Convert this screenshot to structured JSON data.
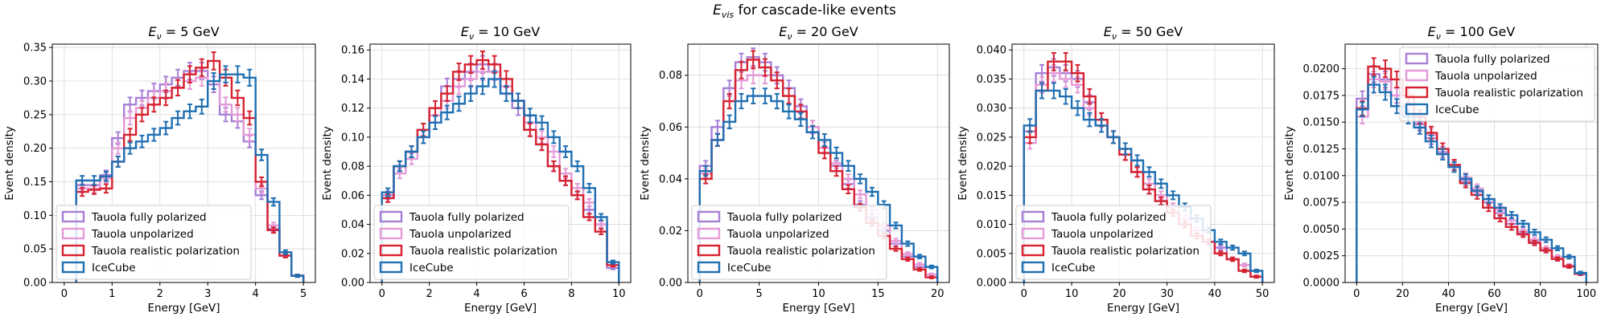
{
  "figure": {
    "suptitle_sym": "E",
    "suptitle_sub": "vis",
    "suptitle_rest": " for cascade-like events"
  },
  "colors": {
    "polarized": "#a87fd6",
    "unpolarized": "#e49ad6",
    "realistic": "#d62230",
    "icecube": "#1f6fb2",
    "grid": "#d8d8d8"
  },
  "legend": [
    "Tauola fully polarized",
    "Tauola unpolarized",
    "Tauola realistic polarization",
    "IceCube"
  ],
  "chart_data": [
    {
      "type": "step",
      "title_energy": "5",
      "title_sym": "E",
      "title_sub": "ν",
      "title_eq": " = ",
      "title_unit": " GeV",
      "xlabel": "Energy [GeV]",
      "ylabel": "Event density",
      "xlim": [
        -0.25,
        5.25
      ],
      "ylim": [
        0,
        0.355
      ],
      "xticks": [
        "0",
        "1",
        "2",
        "3",
        "4",
        "5"
      ],
      "xtick_values": [
        0,
        1,
        2,
        3,
        4,
        5
      ],
      "yticks": [
        "0.00",
        "0.05",
        "0.10",
        "0.15",
        "0.20",
        "0.25",
        "0.30",
        "0.35"
      ],
      "ytick_values": [
        0,
        0.05,
        0.1,
        0.15,
        0.2,
        0.25,
        0.3,
        0.35
      ],
      "legend_position": "lower-left",
      "bin_edges": [
        0.25,
        0.5,
        0.75,
        1.0,
        1.25,
        1.5,
        1.75,
        2.0,
        2.25,
        2.5,
        2.75,
        3.0,
        3.25,
        3.5,
        3.75,
        4.0,
        4.25,
        4.5,
        4.75,
        5.0
      ],
      "series": [
        {
          "name": "Tauola fully polarized",
          "values": [
            0.145,
            0.145,
            0.16,
            0.215,
            0.265,
            0.275,
            0.285,
            0.295,
            0.305,
            0.315,
            0.315,
            0.295,
            0.25,
            0.24,
            0.21,
            0.13,
            0.08,
            0.04,
            0.01
          ]
        },
        {
          "name": "Tauola unpolarized",
          "values": [
            0.14,
            0.14,
            0.155,
            0.2,
            0.245,
            0.26,
            0.275,
            0.285,
            0.29,
            0.3,
            0.305,
            0.3,
            0.265,
            0.25,
            0.22,
            0.14,
            0.085,
            0.04,
            0.01
          ]
        },
        {
          "name": "Tauola realistic polarization",
          "values": [
            0.135,
            0.138,
            0.14,
            0.18,
            0.22,
            0.25,
            0.265,
            0.275,
            0.29,
            0.31,
            0.32,
            0.33,
            0.305,
            0.275,
            0.245,
            0.15,
            0.078,
            0.04,
            0.01
          ]
        },
        {
          "name": "IceCube",
          "values": [
            0.152,
            0.152,
            0.158,
            0.18,
            0.2,
            0.21,
            0.22,
            0.23,
            0.245,
            0.255,
            0.262,
            0.3,
            0.31,
            0.31,
            0.305,
            0.19,
            0.12,
            0.045,
            0.01
          ]
        }
      ]
    },
    {
      "type": "step",
      "title_energy": "10",
      "title_sym": "E",
      "title_sub": "ν",
      "title_eq": " = ",
      "title_unit": " GeV",
      "xlabel": "Energy [GeV]",
      "ylabel": "Event density",
      "xlim": [
        -0.5,
        10.5
      ],
      "ylim": [
        0,
        0.164
      ],
      "xticks": [
        "0",
        "2",
        "4",
        "6",
        "8",
        "10"
      ],
      "xtick_values": [
        0,
        2,
        4,
        6,
        8,
        10
      ],
      "yticks": [
        "0.00",
        "0.02",
        "0.04",
        "0.06",
        "0.08",
        "0.10",
        "0.12",
        "0.14",
        "0.16"
      ],
      "ytick_values": [
        0,
        0.02,
        0.04,
        0.06,
        0.08,
        0.1,
        0.12,
        0.14,
        0.16
      ],
      "legend_position": "lower-left",
      "bin_edges": [
        0,
        0.5,
        1,
        1.5,
        2,
        2.5,
        3,
        3.5,
        4,
        4.5,
        5,
        5.5,
        6,
        6.5,
        7,
        7.5,
        8,
        8.5,
        9,
        9.5,
        10
      ],
      "series": [
        {
          "name": "Tauola fully polarized",
          "values": [
            0.06,
            0.08,
            0.09,
            0.105,
            0.12,
            0.135,
            0.14,
            0.145,
            0.15,
            0.145,
            0.13,
            0.12,
            0.105,
            0.095,
            0.08,
            0.07,
            0.06,
            0.05,
            0.04,
            0.01
          ]
        },
        {
          "name": "Tauola unpolarized",
          "values": [
            0.058,
            0.075,
            0.085,
            0.1,
            0.115,
            0.125,
            0.135,
            0.14,
            0.145,
            0.145,
            0.135,
            0.125,
            0.11,
            0.1,
            0.09,
            0.075,
            0.065,
            0.055,
            0.04,
            0.012
          ]
        },
        {
          "name": "Tauola realistic polarization",
          "values": [
            0.058,
            0.08,
            0.09,
            0.105,
            0.12,
            0.13,
            0.145,
            0.15,
            0.153,
            0.15,
            0.14,
            0.125,
            0.105,
            0.095,
            0.08,
            0.07,
            0.06,
            0.045,
            0.035,
            0.012
          ]
        },
        {
          "name": "IceCube",
          "values": [
            0.062,
            0.08,
            0.09,
            0.1,
            0.11,
            0.117,
            0.123,
            0.13,
            0.135,
            0.14,
            0.13,
            0.125,
            0.115,
            0.11,
            0.1,
            0.09,
            0.08,
            0.065,
            0.045,
            0.014
          ]
        }
      ]
    },
    {
      "type": "step",
      "title_energy": "20",
      "title_sym": "E",
      "title_sub": "ν",
      "title_eq": " = ",
      "title_unit": " GeV",
      "xlabel": "Energy [GeV]",
      "ylabel": "Event density",
      "xlim": [
        -1,
        21
      ],
      "ylim": [
        0,
        0.092
      ],
      "xticks": [
        "0",
        "5",
        "10",
        "15",
        "20"
      ],
      "xtick_values": [
        0,
        5,
        10,
        15,
        20
      ],
      "yticks": [
        "0.00",
        "0.02",
        "0.04",
        "0.06",
        "0.08"
      ],
      "ytick_values": [
        0,
        0.02,
        0.04,
        0.06,
        0.08
      ],
      "legend_position": "lower-left",
      "bin_edges": [
        0,
        1,
        2,
        3,
        4,
        5,
        6,
        7,
        8,
        9,
        10,
        11,
        12,
        13,
        14,
        15,
        16,
        17,
        18,
        19,
        20
      ],
      "series": [
        {
          "name": "Tauola fully polarized",
          "values": [
            0.045,
            0.06,
            0.075,
            0.085,
            0.087,
            0.085,
            0.08,
            0.075,
            0.068,
            0.06,
            0.052,
            0.045,
            0.038,
            0.03,
            0.025,
            0.02,
            0.015,
            0.01,
            0.006,
            0.003
          ]
        },
        {
          "name": "Tauola unpolarized",
          "values": [
            0.042,
            0.055,
            0.07,
            0.078,
            0.08,
            0.08,
            0.078,
            0.072,
            0.066,
            0.06,
            0.052,
            0.046,
            0.04,
            0.034,
            0.028,
            0.022,
            0.016,
            0.011,
            0.007,
            0.003
          ]
        },
        {
          "name": "Tauola realistic polarization",
          "values": [
            0.04,
            0.055,
            0.07,
            0.082,
            0.086,
            0.083,
            0.078,
            0.072,
            0.066,
            0.058,
            0.05,
            0.043,
            0.036,
            0.029,
            0.023,
            0.018,
            0.013,
            0.009,
            0.005,
            0.002
          ]
        },
        {
          "name": "IceCube",
          "values": [
            0.043,
            0.055,
            0.062,
            0.07,
            0.072,
            0.072,
            0.07,
            0.066,
            0.063,
            0.058,
            0.055,
            0.05,
            0.045,
            0.04,
            0.035,
            0.03,
            0.022,
            0.015,
            0.01,
            0.006
          ]
        }
      ]
    },
    {
      "type": "step",
      "title_energy": "50",
      "title_sym": "E",
      "title_sub": "ν",
      "title_eq": " = ",
      "title_unit": " GeV",
      "xlabel": "Energy [GeV]",
      "ylabel": "Event density",
      "xlim": [
        -2.5,
        52.5
      ],
      "ylim": [
        0,
        0.041
      ],
      "xticks": [
        "0",
        "10",
        "20",
        "30",
        "40",
        "50"
      ],
      "xtick_values": [
        0,
        10,
        20,
        30,
        40,
        50
      ],
      "yticks": [
        "0.000",
        "0.005",
        "0.010",
        "0.015",
        "0.020",
        "0.025",
        "0.030",
        "0.035",
        "0.040"
      ],
      "ytick_values": [
        0,
        0.005,
        0.01,
        0.015,
        0.02,
        0.025,
        0.03,
        0.035,
        0.04
      ],
      "legend_position": "lower-left",
      "bin_edges": [
        0,
        2.5,
        5,
        7.5,
        10,
        12.5,
        15,
        17.5,
        20,
        22.5,
        25,
        27.5,
        30,
        32.5,
        35,
        37.5,
        40,
        42.5,
        45,
        47.5,
        50
      ],
      "series": [
        {
          "name": "Tauola fully polarized",
          "values": [
            0.026,
            0.036,
            0.037,
            0.036,
            0.035,
            0.031,
            0.028,
            0.025,
            0.022,
            0.019,
            0.016,
            0.014,
            0.012,
            0.01,
            0.009,
            0.007,
            0.006,
            0.004,
            0.003,
            0.001
          ]
        },
        {
          "name": "Tauola unpolarized",
          "values": [
            0.024,
            0.034,
            0.036,
            0.035,
            0.034,
            0.03,
            0.027,
            0.025,
            0.022,
            0.019,
            0.017,
            0.015,
            0.013,
            0.011,
            0.009,
            0.007,
            0.005,
            0.004,
            0.003,
            0.001
          ]
        },
        {
          "name": "Tauola realistic polarization",
          "values": [
            0.025,
            0.033,
            0.038,
            0.038,
            0.036,
            0.032,
            0.028,
            0.025,
            0.022,
            0.019,
            0.016,
            0.014,
            0.012,
            0.01,
            0.008,
            0.007,
            0.005,
            0.004,
            0.002,
            0.001
          ]
        },
        {
          "name": "IceCube",
          "values": [
            0.027,
            0.033,
            0.033,
            0.032,
            0.03,
            0.028,
            0.027,
            0.025,
            0.023,
            0.021,
            0.019,
            0.017,
            0.015,
            0.013,
            0.011,
            0.009,
            0.007,
            0.006,
            0.005,
            0.002
          ]
        }
      ]
    },
    {
      "type": "step",
      "title_energy": "100",
      "title_sym": "E",
      "title_sub": "ν",
      "title_eq": " = ",
      "title_unit": " GeV",
      "xlabel": "Energy [GeV]",
      "ylabel": "Event density",
      "xlim": [
        -5,
        105
      ],
      "ylim": [
        0,
        0.0223
      ],
      "xticks": [
        "0",
        "20",
        "40",
        "60",
        "80",
        "100"
      ],
      "xtick_values": [
        0,
        20,
        40,
        60,
        80,
        100
      ],
      "yticks": [
        "0.0000",
        "0.0025",
        "0.0050",
        "0.0075",
        "0.0100",
        "0.0125",
        "0.0150",
        "0.0175",
        "0.0200"
      ],
      "ytick_values": [
        0,
        0.0025,
        0.005,
        0.0075,
        0.01,
        0.0125,
        0.015,
        0.0175,
        0.02
      ],
      "legend_position": "upper-right",
      "bin_edges": [
        0,
        5,
        10,
        15,
        20,
        25,
        30,
        35,
        40,
        45,
        50,
        55,
        60,
        65,
        70,
        75,
        80,
        85,
        90,
        95,
        100
      ],
      "series": [
        {
          "name": "Tauola fully polarized",
          "values": [
            0.0172,
            0.0195,
            0.019,
            0.0175,
            0.0165,
            0.0148,
            0.0135,
            0.0122,
            0.011,
            0.0095,
            0.0085,
            0.0075,
            0.0065,
            0.0055,
            0.0046,
            0.0038,
            0.003,
            0.0022,
            0.0015,
            0.0008
          ]
        },
        {
          "name": "Tauola unpolarized",
          "values": [
            0.0155,
            0.019,
            0.0188,
            0.0175,
            0.0165,
            0.015,
            0.0138,
            0.0125,
            0.011,
            0.0098,
            0.0088,
            0.0078,
            0.0068,
            0.0058,
            0.0048,
            0.004,
            0.0032,
            0.0024,
            0.0016,
            0.0008
          ]
        },
        {
          "name": "Tauola realistic polarization",
          "values": [
            0.0163,
            0.0202,
            0.02,
            0.019,
            0.0175,
            0.0155,
            0.014,
            0.0125,
            0.011,
            0.0093,
            0.0082,
            0.007,
            0.006,
            0.0052,
            0.0045,
            0.0037,
            0.003,
            0.0022,
            0.0015,
            0.0008
          ]
        },
        {
          "name": "IceCube",
          "values": [
            0.0162,
            0.0185,
            0.0178,
            0.0165,
            0.0155,
            0.0145,
            0.0132,
            0.012,
            0.0108,
            0.0097,
            0.0086,
            0.0078,
            0.007,
            0.0063,
            0.0055,
            0.0047,
            0.004,
            0.0032,
            0.0024,
            0.0009
          ]
        }
      ]
    }
  ]
}
